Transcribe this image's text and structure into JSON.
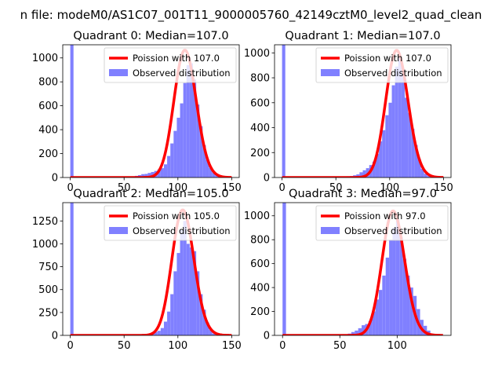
{
  "figure": {
    "suptitle": "n file: modeM0/AS1C07_001T11_9000005760_42149cztM0_level2_quad_clean"
  },
  "colors": {
    "histogram": "#8080ff",
    "poisson": "#ff0000"
  },
  "chart_data": [
    {
      "type": "bar",
      "title": "Quadrant 0: Median=107.0",
      "xlim": [
        -7,
        157
      ],
      "ylim": [
        0,
        1110
      ],
      "xticks": [
        0,
        50,
        100,
        150
      ],
      "xtick_labels": [
        "0",
        "50",
        "100",
        "150"
      ],
      "yticks": [
        0,
        200,
        400,
        600,
        800,
        1000
      ],
      "ytick_labels": [
        "0",
        "200",
        "400",
        "600",
        "800",
        "1000"
      ],
      "bin_width": 3,
      "bins": [
        [
          0,
          1110
        ],
        [
          48,
          2
        ],
        [
          51,
          5
        ],
        [
          54,
          6
        ],
        [
          57,
          10
        ],
        [
          60,
          14
        ],
        [
          63,
          20
        ],
        [
          66,
          28
        ],
        [
          69,
          30
        ],
        [
          72,
          38
        ],
        [
          75,
          46
        ],
        [
          78,
          55
        ],
        [
          81,
          68
        ],
        [
          84,
          78
        ],
        [
          87,
          110
        ],
        [
          90,
          180
        ],
        [
          93,
          285
        ],
        [
          96,
          390
        ],
        [
          99,
          500
        ],
        [
          102,
          620
        ],
        [
          105,
          790
        ],
        [
          108,
          940
        ],
        [
          111,
          955
        ],
        [
          114,
          820
        ],
        [
          117,
          610
        ],
        [
          120,
          430
        ],
        [
          123,
          270
        ],
        [
          126,
          150
        ],
        [
          129,
          80
        ],
        [
          132,
          40
        ],
        [
          135,
          18
        ],
        [
          138,
          8
        ]
      ],
      "poisson_mean": 107,
      "poisson_peak": 1065,
      "poisson_range": [
        0,
        150
      ],
      "legend": [
        "Poission with 107.0",
        "Observed distribution"
      ],
      "legend_position": "upper right"
    },
    {
      "type": "bar",
      "title": "Quadrant 1: Median=107.0",
      "xlim": [
        -7,
        157
      ],
      "ylim": [
        0,
        1065
      ],
      "xticks": [
        0,
        50,
        100,
        150
      ],
      "xtick_labels": [
        "0",
        "50",
        "100",
        "150"
      ],
      "yticks": [
        0,
        200,
        400,
        600,
        800,
        1000
      ],
      "ytick_labels": [
        "0",
        "200",
        "400",
        "600",
        "800",
        "1000"
      ],
      "bin_width": 3,
      "bins": [
        [
          0,
          1065
        ],
        [
          24,
          3
        ],
        [
          30,
          4
        ],
        [
          36,
          3
        ],
        [
          42,
          4
        ],
        [
          48,
          5
        ],
        [
          54,
          6
        ],
        [
          60,
          10
        ],
        [
          63,
          12
        ],
        [
          66,
          18
        ],
        [
          69,
          25
        ],
        [
          72,
          42
        ],
        [
          75,
          58
        ],
        [
          78,
          75
        ],
        [
          81,
          100
        ],
        [
          84,
          128
        ],
        [
          87,
          190
        ],
        [
          90,
          290
        ],
        [
          93,
          380
        ],
        [
          96,
          500
        ],
        [
          99,
          600
        ],
        [
          102,
          740
        ],
        [
          105,
          890
        ],
        [
          108,
          960
        ],
        [
          111,
          830
        ],
        [
          114,
          640
        ],
        [
          117,
          520
        ],
        [
          120,
          390
        ],
        [
          123,
          260
        ],
        [
          126,
          150
        ],
        [
          129,
          70
        ],
        [
          132,
          30
        ],
        [
          135,
          12
        ]
      ],
      "poisson_mean": 107,
      "poisson_peak": 1020,
      "poisson_range": [
        0,
        150
      ],
      "legend": [
        "Poission with 107.0",
        "Observed distribution"
      ],
      "legend_position": "upper right"
    },
    {
      "type": "bar",
      "title": "Quadrant 2: Median=105.0",
      "xlim": [
        -7,
        157
      ],
      "ylim": [
        0,
        1450
      ],
      "xticks": [
        0,
        50,
        100,
        150
      ],
      "xtick_labels": [
        "0",
        "50",
        "100",
        "150"
      ],
      "yticks": [
        0,
        250,
        500,
        750,
        1000,
        1250
      ],
      "ytick_labels": [
        "0",
        "250",
        "500",
        "750",
        "1000",
        "1250"
      ],
      "bin_width": 3,
      "bins": [
        [
          0,
          1450
        ],
        [
          60,
          5
        ],
        [
          63,
          8
        ],
        [
          66,
          12
        ],
        [
          69,
          15
        ],
        [
          72,
          20
        ],
        [
          75,
          28
        ],
        [
          78,
          38
        ],
        [
          81,
          50
        ],
        [
          84,
          80
        ],
        [
          87,
          150
        ],
        [
          90,
          260
        ],
        [
          93,
          450
        ],
        [
          96,
          700
        ],
        [
          99,
          900
        ],
        [
          102,
          1150
        ],
        [
          105,
          1250
        ],
        [
          108,
          1000
        ],
        [
          111,
          960
        ],
        [
          114,
          920
        ],
        [
          117,
          700
        ],
        [
          120,
          450
        ],
        [
          123,
          280
        ],
        [
          126,
          140
        ],
        [
          129,
          60
        ],
        [
          132,
          20
        ]
      ],
      "poisson_mean": 105,
      "poisson_peak": 1370,
      "poisson_range": [
        0,
        150
      ],
      "legend": [
        "Poission with 105.0",
        "Observed distribution"
      ],
      "legend_position": "upper right"
    },
    {
      "type": "bar",
      "title": "Quadrant 3: Median=97.0",
      "xlim": [
        -7,
        147
      ],
      "ylim": [
        0,
        1110
      ],
      "xticks": [
        0,
        50,
        100
      ],
      "xtick_labels": [
        "0",
        "50",
        "100"
      ],
      "yticks": [
        0,
        200,
        400,
        600,
        800,
        1000
      ],
      "ytick_labels": [
        "0",
        "200",
        "400",
        "600",
        "800",
        "1000"
      ],
      "bin_width": 3,
      "bins": [
        [
          0,
          1110
        ],
        [
          48,
          3
        ],
        [
          54,
          8
        ],
        [
          57,
          15
        ],
        [
          60,
          28
        ],
        [
          63,
          40
        ],
        [
          66,
          60
        ],
        [
          69,
          85
        ],
        [
          72,
          95
        ],
        [
          75,
          120
        ],
        [
          78,
          200
        ],
        [
          81,
          300
        ],
        [
          84,
          380
        ],
        [
          87,
          500
        ],
        [
          90,
          650
        ],
        [
          93,
          800
        ],
        [
          96,
          900
        ],
        [
          99,
          970
        ],
        [
          102,
          820
        ],
        [
          105,
          640
        ],
        [
          108,
          500
        ],
        [
          111,
          400
        ],
        [
          114,
          330
        ],
        [
          117,
          220
        ],
        [
          120,
          130
        ],
        [
          123,
          80
        ],
        [
          126,
          40
        ],
        [
          129,
          15
        ],
        [
          132,
          5
        ]
      ],
      "poisson_mean": 97,
      "poisson_peak": 1040,
      "poisson_range": [
        0,
        140
      ],
      "legend": [
        "Poission with 97.0",
        "Observed distribution"
      ],
      "legend_position": "upper right"
    }
  ]
}
